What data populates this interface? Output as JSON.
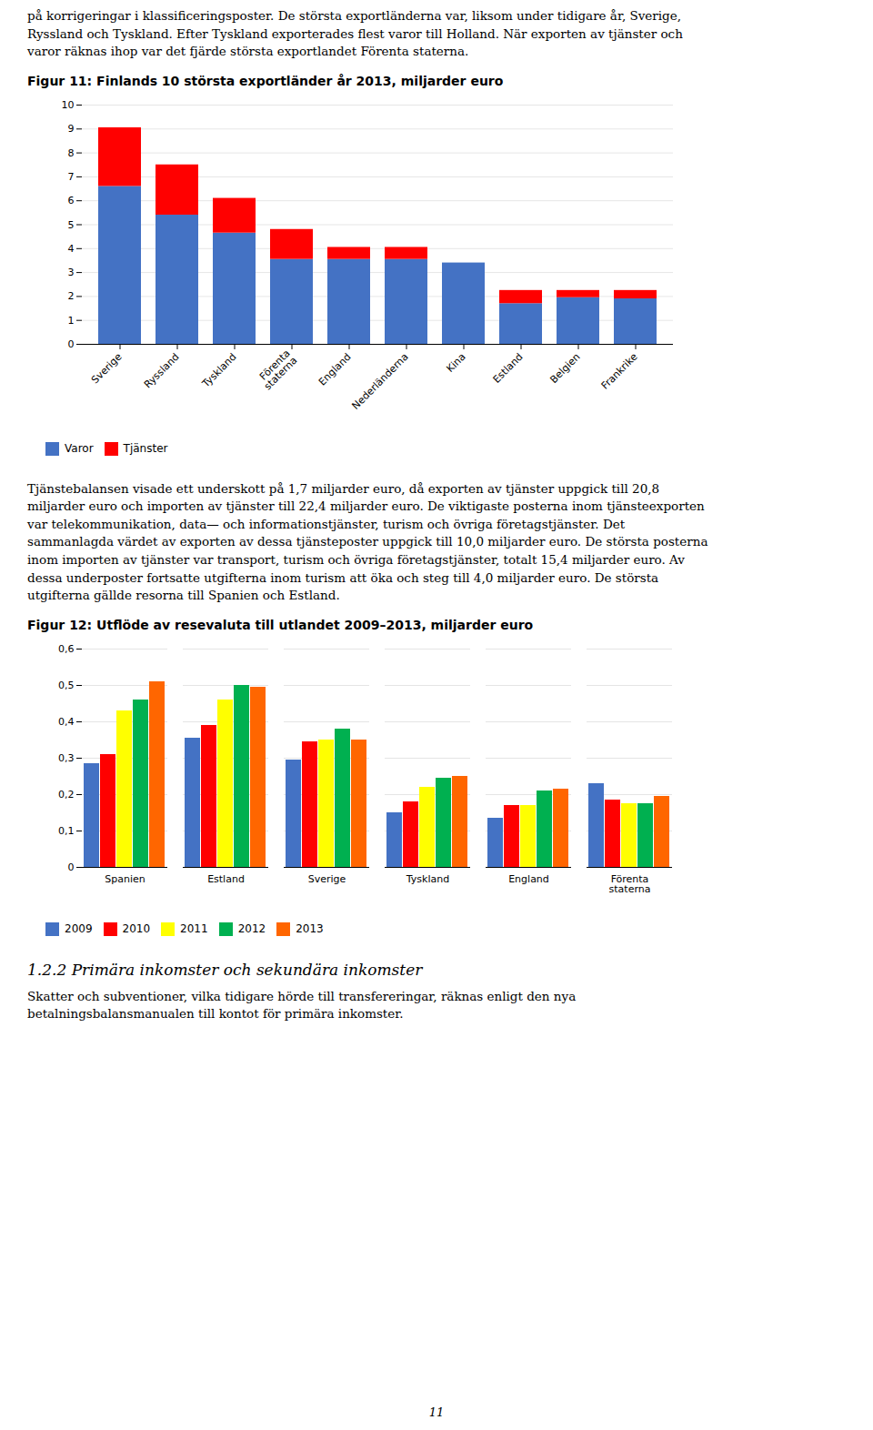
{
  "intro": "på korrigeringar i klassificeringsposter. De största exportländerna var, liksom under tidigare år, Sverige,\nRyssland och Tyskland. Efter Tyskland exporterades flest varor till Holland. När exporten av tjänster och\nvaror räknas ihop var det fjärde största exportlandet Förenta staterna.",
  "between": "Tjänstebalansen visade ett underskott på 1,7 miljarder euro, då exporten av tjänster uppgick till 20,8\nmiljarder euro och importen av tjänster till 22,4 miljarder euro. De viktigaste posterna inom tjänsteexporten\nvar telekommunikation, data— och informationstjänster, turism och övriga företagstjänster. Det\nsammanlagda värdet av exporten av dessa tjänsteposter uppgick till 10,0 miljarder euro. De största posterna\ninom importen av tjänster var transport, turism och övriga företagstjänster, totalt 15,4 miljarder euro. Av\ndessa underposter fortsatte utgifterna inom turism att öka och steg till 4,0 miljarder euro. De största\nutgifterna gällde resorna till Spanien och Estland.",
  "section_heading": "1.2.2 Primära inkomster och sekundära inkomster",
  "section_body": "Skatter och subventioner, vilka tidigare hörde till transfereringar, räknas enligt den nya\nbetalningsbalansmanualen till kontot för primära inkomster.",
  "page_number": "11",
  "chart_data": [
    {
      "type": "bar",
      "title": "Figur 11: Finlands 10 största exportländer år 2013, miljarder euro",
      "categories": [
        "Sverige",
        "Ryssland",
        "Tyskland",
        "Förenta\nstaterna",
        "England",
        "Nederländerna",
        "Kina",
        "Estland",
        "Belgien",
        "Frankrike"
      ],
      "series": [
        {
          "name": "Varor",
          "color": "#4472C4",
          "values": [
            6.6,
            5.4,
            4.65,
            3.55,
            3.55,
            3.55,
            3.4,
            1.7,
            1.95,
            1.9
          ]
        },
        {
          "name": "Tjänster",
          "color": "#FF0000",
          "values": [
            2.45,
            2.1,
            1.45,
            1.25,
            0.5,
            0.5,
            0.0,
            0.55,
            0.3,
            0.35
          ]
        }
      ],
      "stacked": true,
      "ylim": [
        0,
        10
      ],
      "yticks": [
        0,
        1,
        2,
        3,
        4,
        5,
        6,
        7,
        8,
        9,
        10
      ],
      "grid": true,
      "legend": "bottom"
    },
    {
      "type": "bar",
      "title": "Figur 12: Utflöde av resevaluta till utlandet 2009–2013, miljarder euro",
      "categories": [
        "Spanien",
        "Estland",
        "Sverige",
        "Tyskland",
        "England",
        "Förenta\nstaterna"
      ],
      "series": [
        {
          "name": "2009",
          "color": "#4472C4",
          "values": [
            0.285,
            0.355,
            0.295,
            0.15,
            0.135,
            0.23
          ]
        },
        {
          "name": "2010",
          "color": "#FF0000",
          "values": [
            0.31,
            0.39,
            0.345,
            0.18,
            0.17,
            0.185
          ]
        },
        {
          "name": "2011",
          "color": "#FFFF00",
          "values": [
            0.43,
            0.46,
            0.35,
            0.22,
            0.17,
            0.175
          ]
        },
        {
          "name": "2012",
          "color": "#00B050",
          "values": [
            0.46,
            0.5,
            0.38,
            0.245,
            0.21,
            0.175
          ]
        },
        {
          "name": "2013",
          "color": "#FF6600",
          "values": [
            0.51,
            0.495,
            0.35,
            0.25,
            0.215,
            0.195
          ]
        }
      ],
      "ylim": [
        0,
        0.6
      ],
      "yticks": [
        0,
        {
          "value": 0.1,
          "label": "0,1"
        },
        {
          "value": 0.2,
          "label": "0,2"
        },
        {
          "value": 0.3,
          "label": "0,3"
        },
        {
          "value": 0.4,
          "label": "0,4"
        },
        {
          "value": 0.5,
          "label": "0,5"
        },
        {
          "value": 0.6,
          "label": "0,6"
        }
      ],
      "grid": true,
      "legend": "bottom"
    }
  ]
}
